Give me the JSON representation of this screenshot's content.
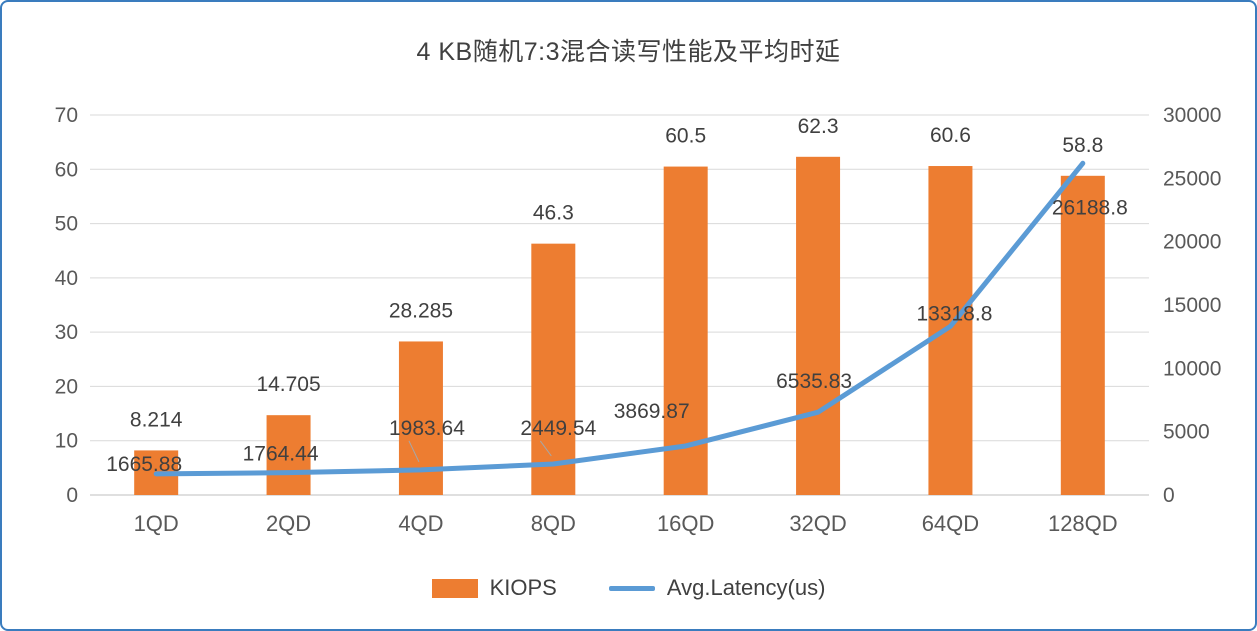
{
  "title": "4 KB随机7:3混合读写性能及平均时延",
  "chart_data": {
    "type": "combo-bar-line",
    "title": "4 KB随机7:3混合读写性能及平均时延",
    "categories": [
      "1QD",
      "2QD",
      "4QD",
      "8QD",
      "16QD",
      "32QD",
      "64QD",
      "128QD"
    ],
    "series": [
      {
        "name": "KIOPS",
        "type": "bar",
        "axis": "left",
        "color": "#ED7D31",
        "values": [
          8.214,
          14.705,
          28.285,
          46.3,
          60.5,
          62.3,
          60.6,
          58.8
        ],
        "labels": [
          "8.214",
          "14.705",
          "28.285",
          "46.3",
          "60.5",
          "62.3",
          "60.6",
          "58.8"
        ]
      },
      {
        "name": "Avg.Latency(us)",
        "type": "line",
        "axis": "right",
        "color": "#5B9BD5",
        "values": [
          1665.88,
          1764.44,
          1983.64,
          2449.54,
          3869.87,
          6535.83,
          13318.8,
          26188.8
        ],
        "labels": [
          "1665.88",
          "1764.44",
          "1983.64",
          "2449.54",
          "3869.87",
          "6535.83",
          "13318.8",
          "26188.8"
        ]
      }
    ],
    "left_axis": {
      "min": 0,
      "max": 70,
      "step": 10,
      "ticks": [
        "0",
        "10",
        "20",
        "30",
        "40",
        "50",
        "60",
        "70"
      ]
    },
    "right_axis": {
      "min": 0,
      "max": 30000,
      "step": 5000,
      "ticks": [
        "0",
        "5000",
        "10000",
        "15000",
        "20000",
        "25000",
        "30000"
      ]
    },
    "grid": true,
    "legend_position": "bottom",
    "colors": {
      "grid": "#D9D9D9",
      "axis": "#BFBFBF",
      "tick_text": "#595959",
      "label_text": "#404040",
      "leader": "#A6A6A6",
      "frame_border": "#3A7CBE"
    },
    "layout_hints": {
      "latency_label_dx": [
        -12,
        -8,
        6,
        5,
        -34,
        -4,
        4,
        7
      ],
      "latency_label_dy": [
        -10,
        -19,
        -42,
        -36,
        -35,
        -31,
        -13,
        44
      ],
      "latency_leader": [
        false,
        false,
        true,
        true,
        false,
        false,
        false,
        false
      ]
    }
  },
  "legend": [
    {
      "label": "KIOPS",
      "swatch": "bar",
      "color": "#ED7D31"
    },
    {
      "label": "Avg.Latency(us)",
      "swatch": "line",
      "color": "#5B9BD5"
    }
  ]
}
